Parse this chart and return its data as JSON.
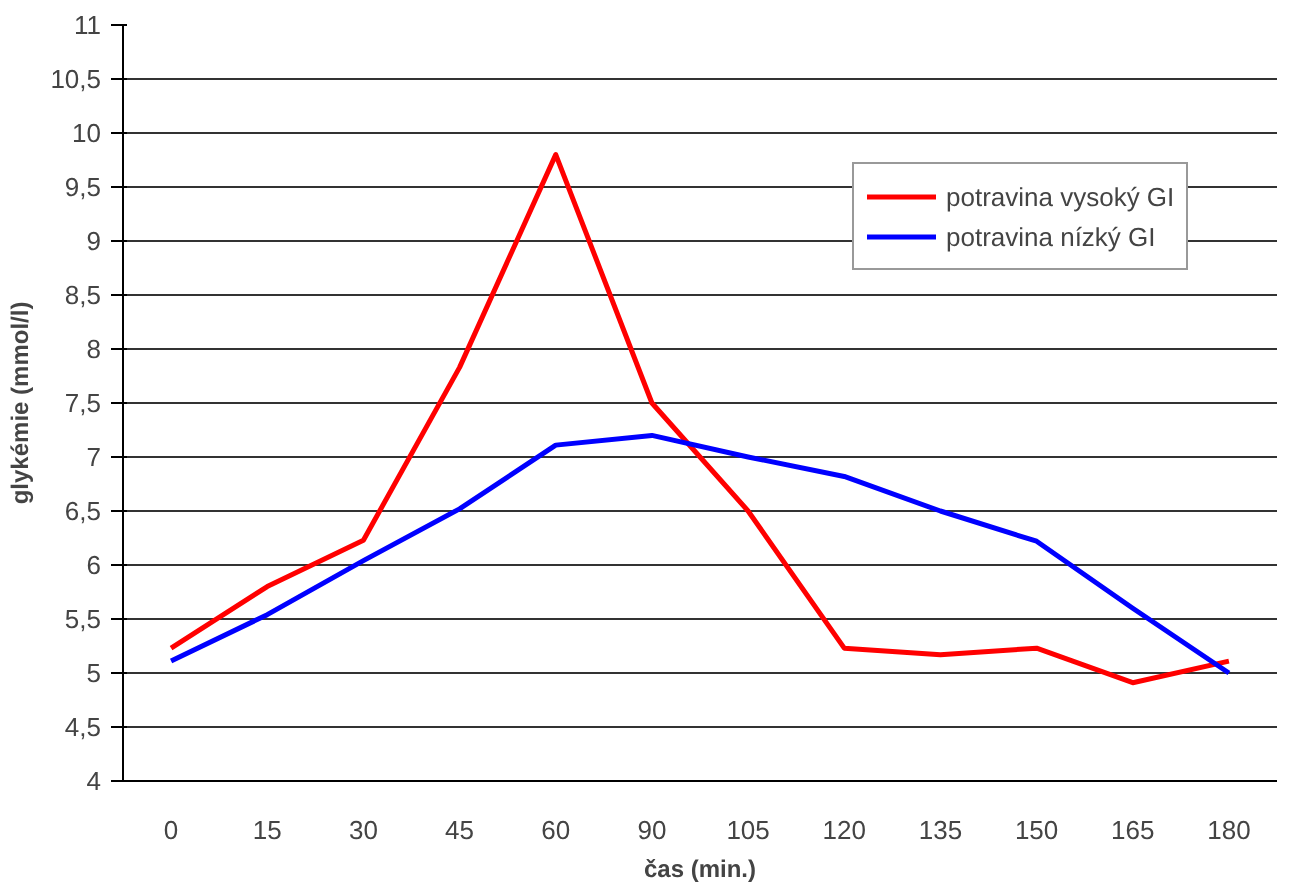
{
  "chart_data": {
    "type": "line",
    "xlabel": "čas (min.)",
    "ylabel": "glykémie (mmol/l)",
    "categories": [
      "0",
      "15",
      "30",
      "45",
      "60",
      "90",
      "105",
      "120",
      "135",
      "150",
      "165",
      "180"
    ],
    "series": [
      {
        "name": "potravina vysoký GI",
        "color": "#ff0000",
        "values": [
          5.23,
          5.8,
          6.23,
          7.83,
          9.8,
          7.5,
          6.5,
          5.23,
          5.17,
          5.23,
          4.91,
          5.11
        ]
      },
      {
        "name": "potravina nízký GI",
        "color": "#0000ff",
        "values": [
          5.11,
          5.54,
          6.04,
          6.52,
          7.11,
          7.2,
          7.0,
          6.82,
          6.5,
          6.22,
          5.6,
          5.0
        ]
      }
    ],
    "ylim": [
      4,
      11
    ],
    "yticks": [
      4,
      {
        "value": 4.5,
        "label": "4,5"
      },
      5,
      {
        "value": 5.5,
        "label": "5,5"
      },
      6,
      {
        "value": 6.5,
        "label": "6,5"
      },
      7,
      {
        "value": 7.5,
        "label": "7,5"
      },
      8,
      {
        "value": 8.5,
        "label": "8,5"
      },
      9,
      {
        "value": 9.5,
        "label": "9,5"
      },
      10,
      {
        "value": 10.5,
        "label": "10,5"
      },
      11
    ],
    "grid": "y",
    "legend": "top right",
    "line_style": "solid"
  }
}
